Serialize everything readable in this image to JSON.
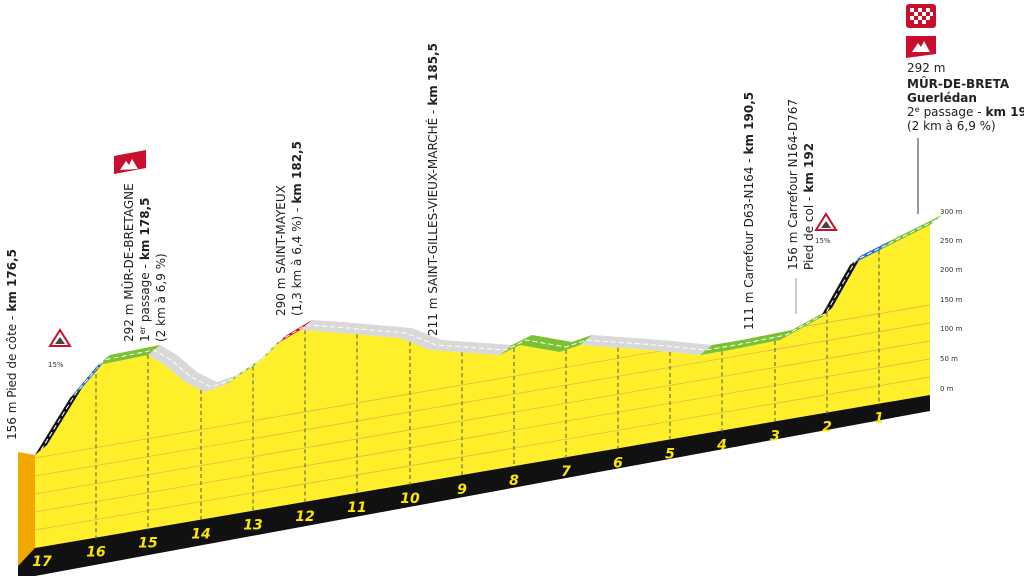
{
  "altitude_axis": [
    "300 m",
    "250 m",
    "200 m",
    "150 m",
    "100 m",
    "50 m",
    "0 m"
  ],
  "km_markers": [
    "17",
    "16",
    "15",
    "14",
    "13",
    "12",
    "11",
    "10",
    "9",
    "8",
    "7",
    "6",
    "5",
    "4",
    "3",
    "2",
    "1"
  ],
  "gradient_badges": [
    "15%",
    "15%"
  ],
  "labels": [
    {
      "lines": [
        {
          "text": "156 m Pied de côte -",
          "km": "km 176,5"
        }
      ]
    },
    {
      "lines": [
        {
          "text": "292 m MÛR-DE-BRETAGNE"
        },
        {
          "text": "1",
          "sup": "er",
          "rest": "passage -",
          "km": "km 178,5"
        },
        {
          "text": "(2 km à 6,9 %)"
        }
      ]
    },
    {
      "lines": [
        {
          "text": "290 m SAINT-MAYEUX"
        },
        {
          "text": "(1,3 km à 6,4 %) -",
          "km": "km 182,5"
        }
      ]
    },
    {
      "lines": [
        {
          "text": "211 m SAINT-GILLES-VIEUX-MARCHÉ -",
          "km": "km 185,5"
        }
      ]
    },
    {
      "lines": [
        {
          "text": "111 m Carrefour D63-N164 -",
          "km": "km 190,5"
        }
      ]
    },
    {
      "lines": [
        {
          "text": "156 m Carrefour N164-D767"
        },
        {
          "text": "Pied de col -",
          "km": "km 192"
        }
      ]
    }
  ],
  "finish": {
    "altitude": "292 m",
    "name": "MÛR-DE-BRETA",
    "place": "Guerlédan",
    "passage": {
      "text": "2",
      "sup": "e",
      "rest": "passage -",
      "km": "km 19"
    },
    "climb": "(2 km à 6,9 %)"
  }
}
